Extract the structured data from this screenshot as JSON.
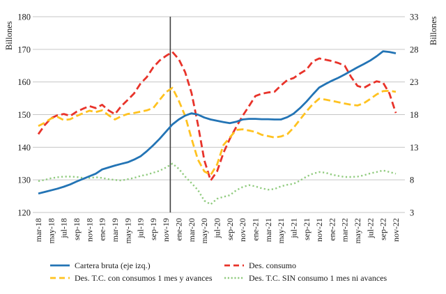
{
  "chart_data": {
    "type": "line",
    "title": "",
    "left_axis": {
      "label": "Billones",
      "min": 120,
      "max": 180,
      "ticks": [
        120,
        130,
        140,
        150,
        160,
        170,
        180
      ]
    },
    "right_axis": {
      "label": "Billones",
      "min": 3,
      "max": 33,
      "ticks": [
        3,
        8,
        13,
        18,
        23,
        28,
        33
      ]
    },
    "x": [
      "mar-18",
      "abr-18",
      "may-18",
      "jun-18",
      "jul-18",
      "ago-18",
      "sep-18",
      "oct-18",
      "nov-18",
      "dic-18",
      "ene-19",
      "feb-19",
      "mar-19",
      "abr-19",
      "may-19",
      "jun-19",
      "jul-19",
      "ago-19",
      "sep-19",
      "oct-19",
      "nov-19",
      "dic-19",
      "ene-20",
      "feb-20",
      "mar-20",
      "abr-20",
      "may-20",
      "jun-20",
      "jul-20",
      "ago-20",
      "sep-20",
      "oct-20",
      "nov-20",
      "dic-20",
      "ene-21",
      "feb-21",
      "mar-21",
      "abr-21",
      "may-21",
      "jun-21",
      "jul-21",
      "ago-21",
      "sep-21",
      "oct-21",
      "nov-21",
      "dic-21",
      "ene-22",
      "feb-22",
      "mar-22",
      "abr-22",
      "may-22",
      "jun-22",
      "jul-22",
      "ago-22",
      "sep-22",
      "oct-22",
      "nov-22"
    ],
    "x_tick_labels": [
      "mar-18",
      "may-18",
      "jul-18",
      "sep-18",
      "nov-18",
      "ene-19",
      "mar-19",
      "may-19",
      "jul-19",
      "sep-19",
      "nov-19",
      "ene-20",
      "mar-20",
      "may-20",
      "jul-20",
      "sep-20",
      "nov-20",
      "ene-21",
      "mar-21",
      "may-21",
      "jul-21",
      "sep-21",
      "nov-21",
      "ene-22",
      "mar-22",
      "may-22",
      "jul-22",
      "sep-22",
      "nov-22"
    ],
    "x_tick_step": 2,
    "vline_month": "dic-19",
    "grid_color": "#c6c6c6",
    "vline_color": "#3f3f3f",
    "series": [
      {
        "name": "Cartera bruta (eje izq.)",
        "axis": "left",
        "style": "solid",
        "color": "#2374b5",
        "values": [
          125.8,
          126.3,
          126.8,
          127.3,
          127.9,
          128.6,
          129.5,
          130.3,
          131.1,
          131.9,
          133.2,
          133.8,
          134.4,
          134.9,
          135.4,
          136.2,
          137.2,
          138.8,
          140.6,
          142.6,
          144.8,
          147.0,
          148.5,
          149.7,
          150.4,
          150.0,
          149.1,
          148.5,
          148.1,
          147.7,
          147.4,
          147.8,
          148.5,
          148.7,
          148.7,
          148.6,
          148.6,
          148.5,
          148.5,
          149.2,
          150.3,
          152.0,
          154.0,
          156.2,
          158.3,
          159.4,
          160.4,
          161.3,
          162.3,
          163.4,
          164.5,
          165.5,
          166.6,
          167.9,
          169.4,
          169.2,
          168.8
        ]
      },
      {
        "name": "Des. consumo",
        "axis": "right",
        "style": "dashed",
        "color": "#e8332a",
        "values": [
          15.0,
          16.4,
          17.45,
          17.9,
          18.1,
          17.8,
          18.45,
          18.9,
          19.3,
          19.0,
          19.5,
          18.65,
          18.05,
          19.3,
          20.25,
          21.25,
          22.75,
          23.75,
          25.25,
          26.3,
          27.0,
          27.6,
          26.5,
          24.5,
          21.3,
          16.5,
          11.0,
          7.9,
          9.3,
          12.15,
          14.3,
          16.1,
          17.8,
          19.3,
          20.85,
          21.2,
          21.4,
          21.5,
          22.45,
          23.3,
          23.6,
          24.3,
          24.9,
          26.15,
          26.6,
          26.4,
          26.2,
          25.9,
          25.5,
          23.75,
          22.4,
          22.1,
          22.65,
          23.1,
          22.9,
          21.25,
          18.25
        ]
      },
      {
        "name": "Des. T.C. con consumos 1 mes y avances",
        "axis": "right",
        "style": "dashed",
        "color": "#ffc220",
        "values": [
          16.25,
          16.75,
          17.4,
          17.65,
          17.15,
          17.3,
          17.8,
          18.2,
          18.6,
          18.4,
          18.65,
          17.9,
          17.25,
          17.75,
          18.1,
          18.25,
          18.45,
          18.65,
          19.0,
          20.25,
          21.45,
          22.1,
          20.15,
          17.8,
          14.3,
          11.1,
          9.3,
          8.75,
          10.35,
          13.35,
          14.5,
          15.65,
          15.75,
          15.55,
          15.35,
          14.9,
          14.7,
          14.5,
          14.65,
          15.0,
          16.0,
          17.25,
          18.5,
          19.6,
          20.45,
          20.3,
          20.1,
          19.9,
          19.7,
          19.5,
          19.4,
          19.75,
          20.4,
          21.1,
          21.6,
          21.65,
          21.5
        ]
      },
      {
        "name": "Des. T.C. SIN consumo 1 mes ni avances",
        "axis": "right",
        "style": "dotted",
        "color": "#90cb7e",
        "values": [
          7.8,
          8.0,
          8.25,
          8.4,
          8.5,
          8.5,
          8.45,
          8.3,
          8.3,
          8.4,
          8.3,
          8.1,
          8.0,
          7.9,
          8.1,
          8.3,
          8.6,
          8.8,
          9.1,
          9.4,
          9.9,
          10.5,
          9.7,
          8.5,
          7.5,
          6.45,
          4.8,
          4.25,
          5.1,
          5.4,
          5.65,
          6.4,
          6.9,
          7.2,
          7.0,
          6.7,
          6.5,
          6.6,
          7.0,
          7.25,
          7.4,
          7.9,
          8.5,
          8.95,
          9.2,
          9.1,
          8.8,
          8.6,
          8.45,
          8.45,
          8.5,
          8.7,
          9.0,
          9.2,
          9.45,
          9.2,
          8.95
        ]
      }
    ],
    "legend": {
      "items": [
        {
          "label": "Cartera bruta (eje izq.)",
          "series": 0
        },
        {
          "label": "Des. consumo",
          "series": 1
        },
        {
          "label": "Des. T.C. con consumos 1 mes y avances",
          "series": 2
        },
        {
          "label": "Des. T.C. SIN consumo 1 mes ni avances",
          "series": 3
        }
      ]
    }
  }
}
